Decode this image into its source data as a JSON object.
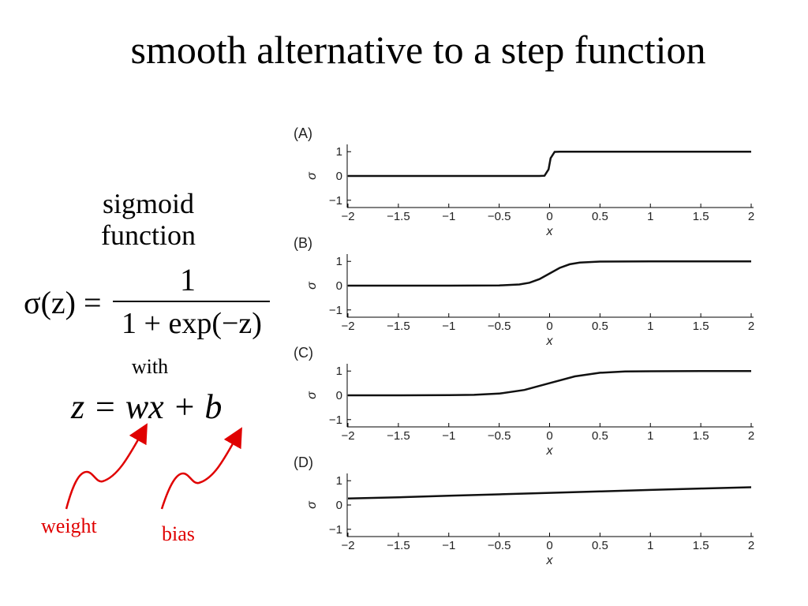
{
  "slide": {
    "title": "smooth alternative to a step function",
    "label_line1": "sigmoid",
    "label_line2": "function",
    "sigma_lhs": "σ(z) =",
    "numerator": "1",
    "denominator": "1 +  exp(−z)",
    "with_text": "with",
    "z_formula": "z = wx + b",
    "weight_label": "weight",
    "bias_label": "bias",
    "annotation_color": "#e00000"
  },
  "chart_data": [
    {
      "panel": "(A)",
      "type": "line",
      "xlabel": "x",
      "ylabel": "σ",
      "xlim": [
        -2,
        2
      ],
      "ylim": [
        -1.3,
        1.3
      ],
      "xticks": [
        "−2",
        "−1.5",
        "−1",
        "−0.5",
        "0",
        "0.5",
        "1",
        "1.5",
        "2"
      ],
      "yticks": [
        "1",
        "0",
        "−1"
      ],
      "series": [
        {
          "x": [
            -2,
            -1.0,
            -0.1,
            -0.05,
            -0.01,
            0.01,
            0.05,
            0.1,
            1.0,
            2
          ],
          "y": [
            0,
            0,
            0.0,
            0.01,
            0.27,
            0.73,
            0.99,
            1.0,
            1,
            1
          ]
        }
      ]
    },
    {
      "panel": "(B)",
      "type": "line",
      "xlabel": "x",
      "ylabel": "σ",
      "xlim": [
        -2,
        2
      ],
      "ylim": [
        -1.3,
        1.3
      ],
      "xticks": [
        "−2",
        "−1.5",
        "−1",
        "−0.5",
        "0",
        "0.5",
        "1",
        "1.5",
        "2"
      ],
      "yticks": [
        "1",
        "0",
        "−1"
      ],
      "series": [
        {
          "x": [
            -2,
            -1,
            -0.5,
            -0.3,
            -0.2,
            -0.1,
            0,
            0.1,
            0.2,
            0.3,
            0.5,
            1,
            2
          ],
          "y": [
            0,
            0,
            0.01,
            0.05,
            0.12,
            0.27,
            0.5,
            0.73,
            0.88,
            0.95,
            0.99,
            1,
            1
          ]
        }
      ]
    },
    {
      "panel": "(C)",
      "type": "line",
      "xlabel": "x",
      "ylabel": "σ",
      "xlim": [
        -2,
        2
      ],
      "ylim": [
        -1.3,
        1.3
      ],
      "xticks": [
        "−2",
        "−1.5",
        "−1",
        "−0.5",
        "0",
        "0.5",
        "1",
        "1.5",
        "2"
      ],
      "yticks": [
        "1",
        "0",
        "−1"
      ],
      "series": [
        {
          "x": [
            -2,
            -1.5,
            -1,
            -0.75,
            -0.5,
            -0.25,
            0,
            0.25,
            0.5,
            0.75,
            1,
            1.5,
            2
          ],
          "y": [
            0,
            0,
            0.01,
            0.02,
            0.07,
            0.22,
            0.5,
            0.78,
            0.93,
            0.98,
            0.99,
            1,
            1
          ]
        }
      ]
    },
    {
      "panel": "(D)",
      "type": "line",
      "xlabel": "x",
      "ylabel": "σ",
      "xlim": [
        -2,
        2
      ],
      "ylim": [
        -1.3,
        1.3
      ],
      "xticks": [
        "−2",
        "−1.5",
        "−1",
        "−0.5",
        "0",
        "0.5",
        "1",
        "1.5",
        "2"
      ],
      "yticks": [
        "1",
        "0",
        "−1"
      ],
      "series": [
        {
          "x": [
            -2,
            -1.5,
            -1,
            -0.5,
            0,
            0.5,
            1,
            1.5,
            2
          ],
          "y": [
            0.27,
            0.32,
            0.38,
            0.44,
            0.5,
            0.56,
            0.62,
            0.68,
            0.73
          ]
        }
      ]
    }
  ]
}
